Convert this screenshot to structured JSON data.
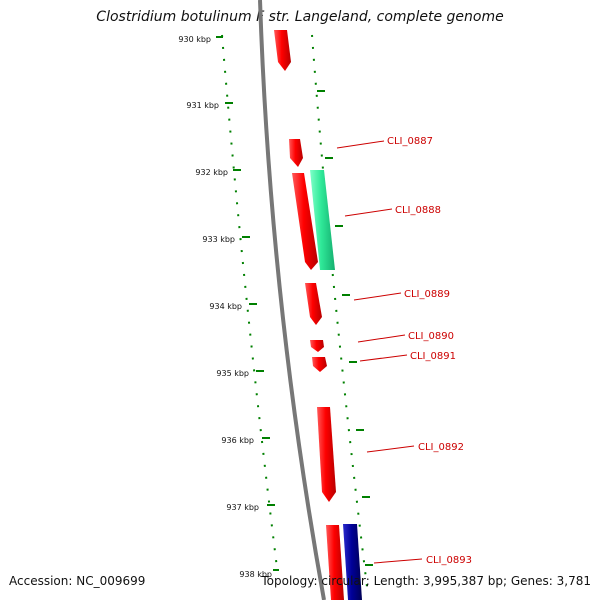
{
  "title": "Clostridium botulinum F str. Langeland, complete genome",
  "accession": "Accession: NC_009699",
  "summary": "Topology: circular; Length: 3,995,387 bp; Genes: 3,781",
  "ticks": [
    "930 kbp",
    "931 kbp",
    "932 kbp",
    "933 kbp",
    "934 kbp",
    "935 kbp",
    "936 kbp",
    "937 kbp",
    "938 kbp"
  ],
  "genes": [
    "CLI_0887",
    "CLI_0888",
    "CLI_0889",
    "CLI_0890",
    "CLI_0891",
    "CLI_0892",
    "CLI_0893"
  ],
  "colors": {
    "backbone": "#777777",
    "gene_red": "#ff0000",
    "gene_green": "#33ee99",
    "gene_blue": "#000099",
    "tick": "#008000",
    "label": "#cc0000"
  }
}
